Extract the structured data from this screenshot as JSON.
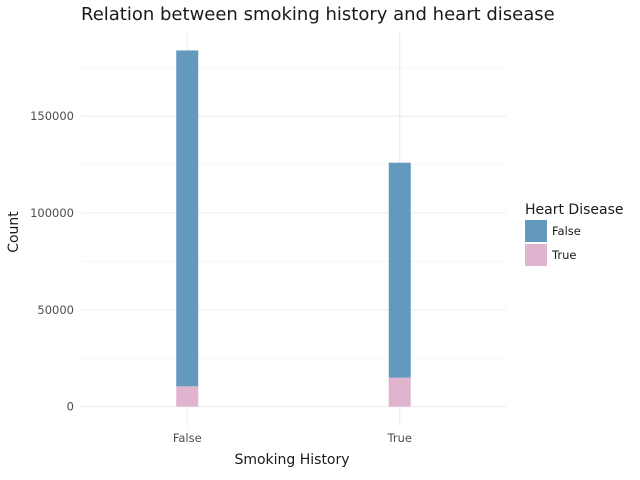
{
  "chart_data": {
    "type": "bar",
    "stacked": true,
    "title": "Relation between smoking history and heart disease",
    "xlabel": "Smoking History",
    "ylabel": "Count",
    "categories": [
      "False",
      "True"
    ],
    "series": [
      {
        "name": "False",
        "color": "#6399bd",
        "values": [
          173500,
          111000
        ]
      },
      {
        "name": "True",
        "color": "#e0b3cf",
        "values": [
          10500,
          15000
        ]
      }
    ],
    "ylim": [
      -10000,
      193000
    ],
    "yticks": [
      0,
      50000,
      100000,
      150000
    ],
    "ytick_labels": [
      "0",
      "50000",
      "100000",
      "150000"
    ],
    "grid": true,
    "legend": {
      "title": "Heart Disease",
      "position": "right"
    }
  }
}
